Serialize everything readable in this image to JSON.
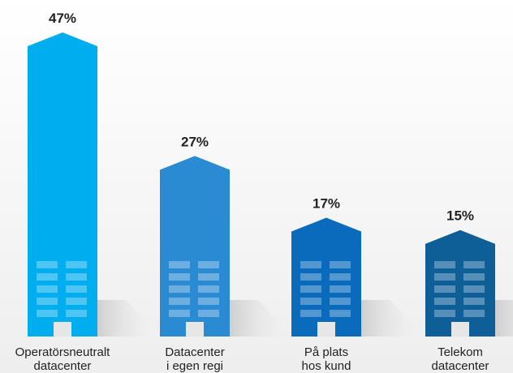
{
  "chart_data": {
    "type": "building-bar",
    "categories": [
      "Operatörsneutralt\ndatacenter",
      "Datacenter\ni egen regi",
      "På plats\nhos kund",
      "Telekom\ndatacenter"
    ],
    "values": [
      47,
      27,
      17,
      15
    ],
    "value_labels": [
      "47%",
      "27%",
      "17%",
      "15%"
    ],
    "colors": [
      "#00aeef",
      "#2b8bd2",
      "#0a6bbd",
      "#0e5f98"
    ]
  }
}
